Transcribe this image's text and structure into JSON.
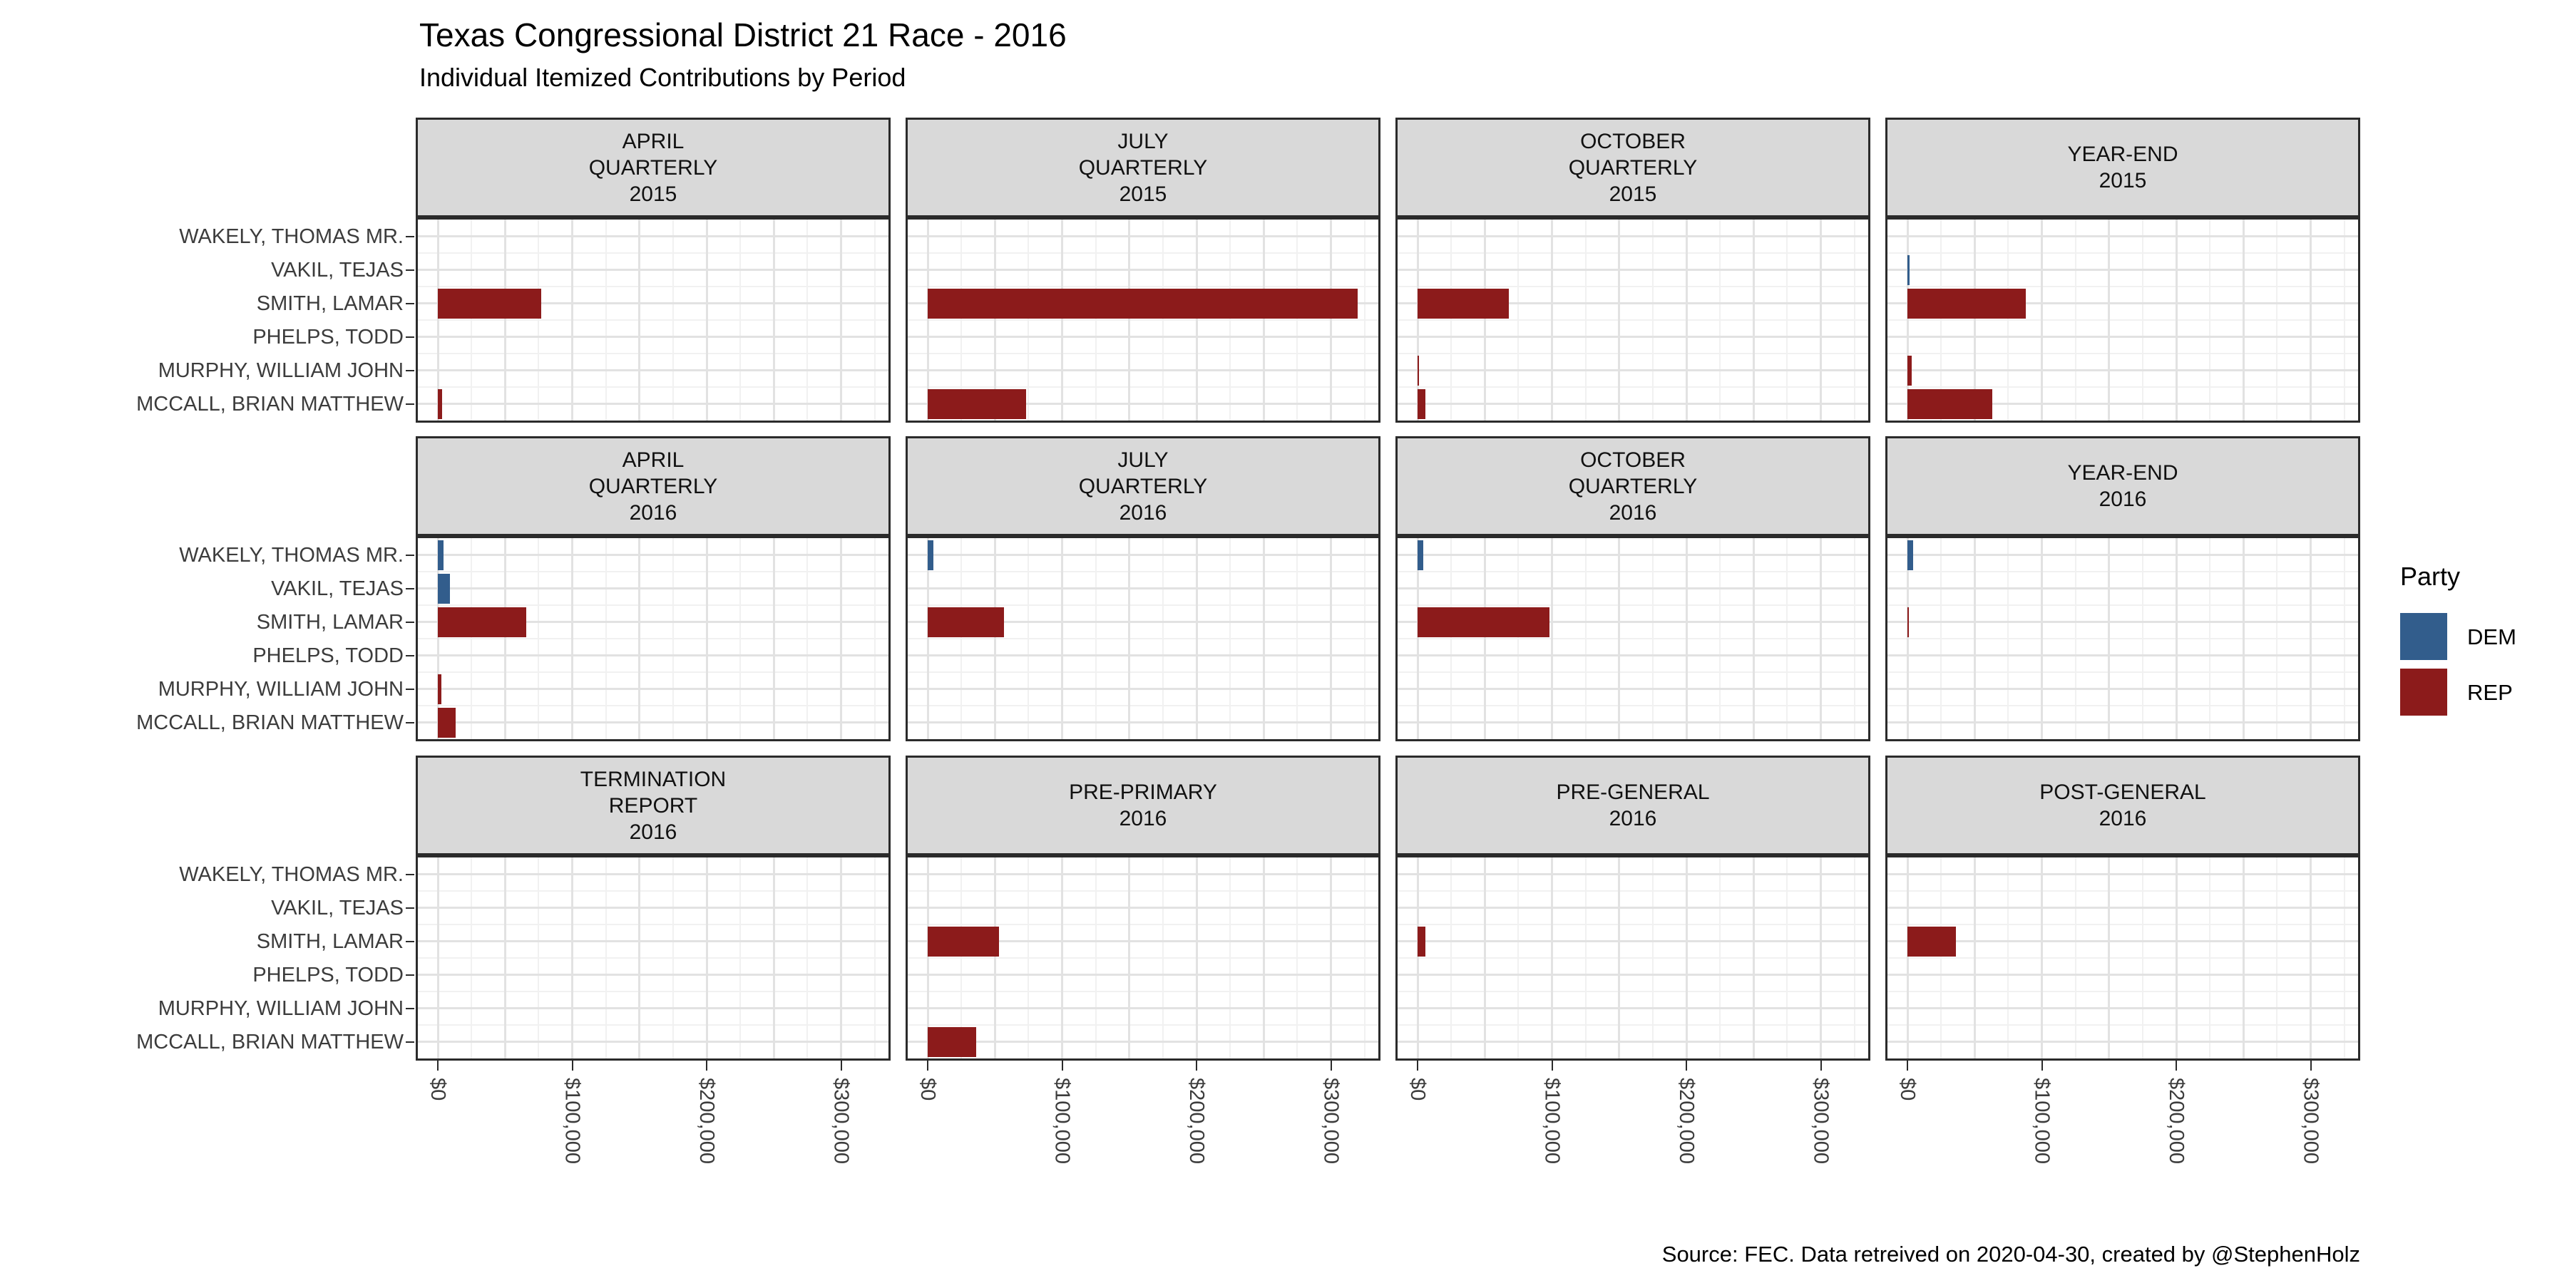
{
  "header": {
    "title": "Texas Congressional District 21 Race - 2016",
    "subtitle": "Individual Itemized Contributions by Period"
  },
  "caption": "Source: FEC. Data retreived on 2020-04-30, created by @StephenHolz",
  "legend": {
    "title": "Party",
    "entries": [
      {
        "label": "DEM",
        "color": "#325D8C"
      },
      {
        "label": "REP",
        "color": "#8C1B1B"
      }
    ]
  },
  "chart_data": {
    "type": "bar",
    "orientation": "horizontal",
    "title": "Texas Congressional District 21 Race - 2016",
    "subtitle": "Individual Itemized Contributions by Period",
    "grid": "on",
    "legend_position": "right",
    "candidates": [
      "WAKELY, THOMAS MR.",
      "VAKIL, TEJAS",
      "SMITH, LAMAR",
      "PHELPS, TODD",
      "MURPHY, WILLIAM JOHN",
      "MCCALL, BRIAN MATTHEW"
    ],
    "party_of": {
      "WAKELY, THOMAS MR.": "DEM",
      "VAKIL, TEJAS": "DEM",
      "SMITH, LAMAR": "REP",
      "PHELPS, TODD": "REP",
      "MURPHY, WILLIAM JOHN": "REP",
      "MCCALL, BRIAN MATTHEW": "REP"
    },
    "party_colors": {
      "DEM": "#325D8C",
      "REP": "#8C1B1B"
    },
    "x_tick_labels": [
      "$0",
      "$100,000",
      "$200,000",
      "$300,000"
    ],
    "x_tick_values": [
      0,
      100000,
      200000,
      300000
    ],
    "xlim": [
      0,
      336000
    ],
    "minor_grid_step": 25000,
    "major_grid_step": 50000,
    "facets": [
      {
        "label_lines": [
          "APRIL",
          "QUARTERLY",
          "2015"
        ],
        "values": [
          null,
          null,
          77000,
          null,
          null,
          3000
        ]
      },
      {
        "label_lines": [
          "JULY",
          "QUARTERLY",
          "2015"
        ],
        "values": [
          null,
          null,
          320000,
          null,
          null,
          73000
        ]
      },
      {
        "label_lines": [
          "OCTOBER",
          "QUARTERLY",
          "2015"
        ],
        "values": [
          null,
          null,
          68000,
          null,
          1200,
          6000
        ]
      },
      {
        "label_lines": [
          "YEAR-END",
          "2015"
        ],
        "values": [
          null,
          1500,
          88000,
          null,
          3000,
          63000
        ]
      },
      {
        "label_lines": [
          "APRIL",
          "QUARTERLY",
          "2016"
        ],
        "values": [
          4000,
          9000,
          66000,
          null,
          2500,
          13000
        ]
      },
      {
        "label_lines": [
          "JULY",
          "QUARTERLY",
          "2016"
        ],
        "values": [
          4000,
          null,
          57000,
          null,
          null,
          null
        ]
      },
      {
        "label_lines": [
          "OCTOBER",
          "QUARTERLY",
          "2016"
        ],
        "values": [
          4000,
          null,
          98000,
          null,
          null,
          null
        ]
      },
      {
        "label_lines": [
          "YEAR-END",
          "2016"
        ],
        "values": [
          4000,
          null,
          1000,
          null,
          null,
          null
        ]
      },
      {
        "label_lines": [
          "TERMINATION",
          "REPORT",
          "2016"
        ],
        "values": [
          null,
          null,
          null,
          null,
          null,
          null
        ]
      },
      {
        "label_lines": [
          "PRE-PRIMARY",
          "2016"
        ],
        "values": [
          null,
          null,
          53000,
          null,
          null,
          36000
        ]
      },
      {
        "label_lines": [
          "PRE-GENERAL",
          "2016"
        ],
        "values": [
          null,
          null,
          6000,
          null,
          null,
          null
        ]
      },
      {
        "label_lines": [
          "POST-GENERAL",
          "2016"
        ],
        "values": [
          null,
          null,
          36000,
          null,
          null,
          null
        ]
      }
    ]
  }
}
